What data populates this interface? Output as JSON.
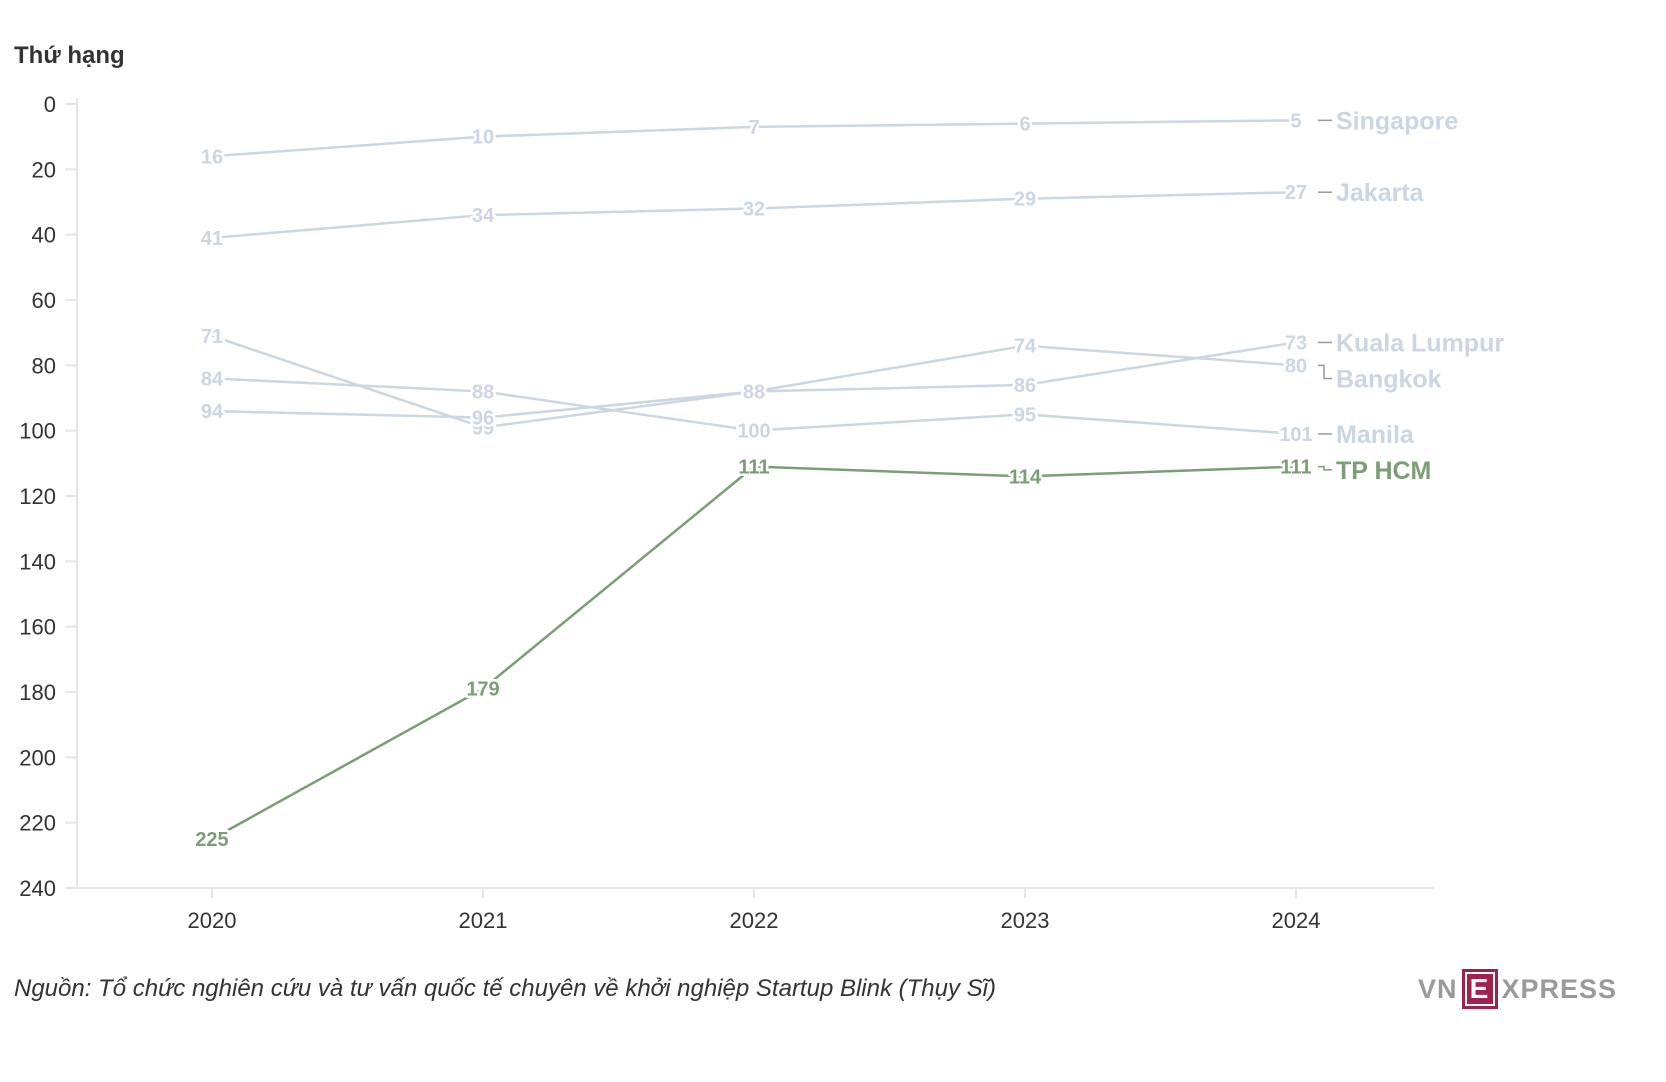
{
  "chart_data": {
    "type": "line",
    "ylabel": "Thứ hạng",
    "y_reversed": true,
    "ylim": [
      0,
      240
    ],
    "yticks": [
      0,
      20,
      40,
      60,
      80,
      100,
      120,
      140,
      160,
      180,
      200,
      220,
      240
    ],
    "x": [
      2020,
      2021,
      2022,
      2023,
      2024
    ],
    "xticks": [
      "2020",
      "2021",
      "2022",
      "2023",
      "2024"
    ],
    "series": [
      {
        "name": "Singapore",
        "values": [
          16,
          10,
          7,
          6,
          5
        ],
        "labels": [
          "16",
          "10",
          "7",
          "6",
          "5"
        ],
        "color": "#ccd6e3",
        "highlight": false
      },
      {
        "name": "Jakarta",
        "values": [
          41,
          34,
          32,
          29,
          27
        ],
        "labels": [
          "41",
          "34",
          "32",
          "29",
          "27"
        ],
        "color": "#ccd6e3",
        "highlight": false
      },
      {
        "name": "Kuala Lumpur",
        "values": [
          71,
          99,
          88,
          86,
          73
        ],
        "labels": [
          "71",
          "99",
          "88",
          "86",
          "73"
        ],
        "color": "#ccd6e3",
        "highlight": false
      },
      {
        "name": "Bangkok",
        "values": [
          94,
          96,
          88,
          74,
          80
        ],
        "labels": [
          "94",
          "96",
          "88",
          "74",
          "80"
        ],
        "color": "#ccd6e3",
        "highlight": false
      },
      {
        "name": "Manila",
        "values": [
          84,
          88,
          100,
          95,
          101
        ],
        "labels": [
          "84",
          "88",
          "100",
          "95",
          "101"
        ],
        "color": "#ccd6e3",
        "highlight": false
      },
      {
        "name": "TP HCM",
        "values": [
          225,
          179,
          111,
          114,
          111
        ],
        "labels": [
          "225",
          "179",
          "111",
          "114",
          "111"
        ],
        "color": "#7b9e76",
        "highlight": true
      }
    ]
  },
  "source": "Nguồn: Tổ chức nghiên cứu và tư vấn quốc tế chuyên về khởi nghiệp Startup Blink (Thụy Sĩ)",
  "logo": {
    "left": "VN",
    "box": "E",
    "right": "XPRESS"
  }
}
